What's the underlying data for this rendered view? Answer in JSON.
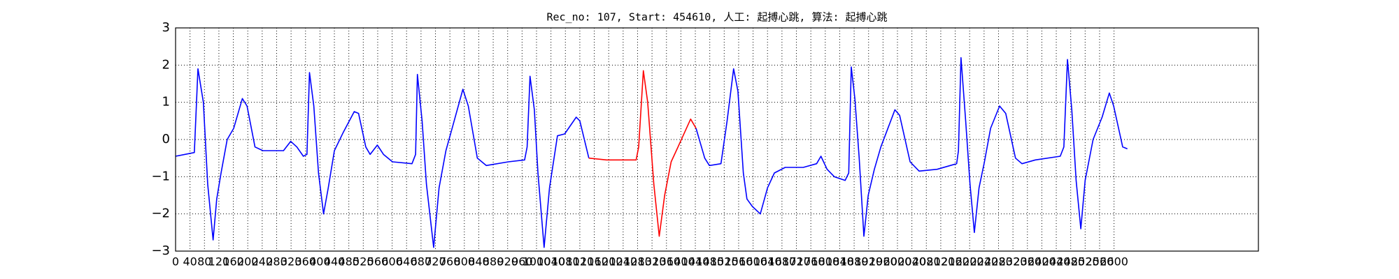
{
  "chart_data": {
    "type": "line",
    "title": "Rec_no: 107, Start: 454610, 人工: 起搏心跳, 算法: 起搏心跳",
    "x": [
      0,
      52,
      62,
      77,
      89,
      104,
      114,
      126,
      143,
      161,
      185,
      198,
      220,
      242,
      299,
      319,
      336,
      354,
      364,
      371,
      383,
      396,
      410,
      423,
      440,
      465,
      495,
      507,
      527,
      539,
      559,
      576,
      601,
      655,
      665,
      670,
      683,
      695,
      715,
      730,
      749,
      769,
      796,
      811,
      836,
      861,
      922,
      967,
      974,
      982,
      994,
      1004,
      1021,
      1036,
      1058,
      1078,
      1110,
      1120,
      1145,
      1194,
      1276,
      1283,
      1296,
      1308,
      1325,
      1340,
      1355,
      1373,
      1392,
      1427,
      1442,
      1466,
      1479,
      1511,
      1528,
      1546,
      1558,
      1573,
      1583,
      1598,
      1620,
      1640,
      1659,
      1689,
      1739,
      1776,
      1788,
      1805,
      1825,
      1855,
      1865,
      1872,
      1882,
      1894,
      1907,
      1919,
      1936,
      1954,
      1993,
      2006,
      2035,
      2060,
      2110,
      2164,
      2169,
      2176,
      2189,
      2201,
      2213,
      2226,
      2241,
      2258,
      2283,
      2300,
      2327,
      2345,
      2382,
      2451,
      2461,
      2471,
      2483,
      2495,
      2508,
      2520,
      2542,
      2567,
      2587,
      2599,
      2624,
      2637
    ],
    "series": [
      {
        "color": "#0000ff",
        "values": [
          -0.45,
          -0.35,
          1.9,
          1.0,
          -1.2,
          -2.7,
          -1.6,
          -0.9,
          0,
          0.3,
          1.1,
          0.9,
          -0.2,
          -0.3,
          -0.3,
          -0.05,
          -0.2,
          -0.45,
          -0.4,
          1.8,
          0.9,
          -0.9,
          -2.0,
          -1.3,
          -0.3,
          0.2,
          0.75,
          0.7,
          -0.2,
          -0.4,
          -0.15,
          -0.4,
          -0.6,
          -0.65,
          -0.4,
          1.75,
          0.5,
          -1.2,
          -2.9,
          -1.3,
          -0.3,
          0.4,
          1.35,
          0.9,
          -0.5,
          -0.7,
          -0.6,
          -0.55,
          -0.2,
          1.7,
          0.8,
          -0.9,
          -2.9,
          -1.3,
          0.1,
          0.15,
          0.6,
          0.5,
          -0.5,
          null,
          null,
          null,
          null,
          null,
          null,
          null,
          null,
          null,
          null,
          null,
          0.3,
          -0.5,
          -0.7,
          -0.65,
          0.5,
          1.9,
          1.3,
          -0.9,
          -1.6,
          -1.8,
          -2.0,
          -1.3,
          -0.9,
          -0.75,
          -0.75,
          -0.65,
          -0.45,
          -0.8,
          -1.0,
          -1.1,
          -0.9,
          1.95,
          1.1,
          -0.5,
          -2.6,
          -1.5,
          -0.8,
          -0.2,
          0.8,
          0.65,
          -0.6,
          -0.85,
          -0.8,
          -0.65,
          -0.3,
          2.2,
          0.5,
          -1.2,
          -2.5,
          -1.3,
          -0.6,
          0.3,
          0.9,
          0.7,
          -0.5,
          -0.65,
          -0.55,
          -0.45,
          -0.2,
          2.15,
          0.8,
          -1.1,
          -2.4,
          -1.1,
          0.0,
          0.6,
          1.25,
          0.9,
          -0.2,
          -0.25
        ]
      },
      {
        "color": "#ff0000",
        "values": [
          null,
          null,
          null,
          null,
          null,
          null,
          null,
          null,
          null,
          null,
          null,
          null,
          null,
          null,
          null,
          null,
          null,
          null,
          null,
          null,
          null,
          null,
          null,
          null,
          null,
          null,
          null,
          null,
          null,
          null,
          null,
          null,
          null,
          null,
          null,
          null,
          null,
          null,
          null,
          null,
          null,
          null,
          null,
          null,
          null,
          null,
          null,
          null,
          null,
          null,
          null,
          null,
          null,
          null,
          null,
          null,
          null,
          null,
          -0.5,
          -0.55,
          -0.55,
          -0.2,
          1.85,
          1.0,
          -1.2,
          -2.6,
          -1.5,
          -0.6,
          -0.2,
          0.55,
          0.3,
          null,
          null,
          null,
          null,
          null,
          null,
          null,
          null,
          null,
          null,
          null,
          null,
          null,
          null,
          null,
          null,
          null,
          null,
          null,
          null,
          null,
          null,
          null,
          null,
          null,
          null,
          null,
          null,
          null,
          null,
          null,
          null,
          null,
          null,
          null,
          null,
          null,
          null,
          null,
          null,
          null,
          null,
          null,
          null,
          null,
          null,
          null,
          null,
          null,
          null,
          null,
          null,
          null,
          null,
          null,
          null,
          null,
          null,
          null
        ]
      }
    ],
    "xlim": [
      0,
      3000
    ],
    "xticks": [
      0,
      40,
      80,
      120,
      160,
      200,
      240,
      280,
      320,
      360,
      400,
      440,
      480,
      520,
      560,
      600,
      640,
      680,
      720,
      760,
      800,
      840,
      880,
      920,
      960,
      1000,
      1040,
      1080,
      1120,
      1160,
      1200,
      1240,
      1280,
      1320,
      1360,
      1400,
      1440,
      1480,
      1520,
      1560,
      1600,
      1640,
      1680,
      1720,
      1760,
      1800,
      1840,
      1880,
      1920,
      1960,
      2000,
      2040,
      2080,
      2120,
      2160,
      2200,
      2240,
      2280,
      2320,
      2360,
      2400,
      2440,
      2480,
      2520,
      2560,
      2600
    ],
    "ylim": [
      -3,
      3
    ],
    "yticks": [
      {
        "value": -3,
        "label": "−3"
      },
      {
        "value": -2,
        "label": "−2"
      },
      {
        "value": -1,
        "label": "−1"
      },
      0,
      1,
      2,
      3
    ],
    "grid": true
  }
}
